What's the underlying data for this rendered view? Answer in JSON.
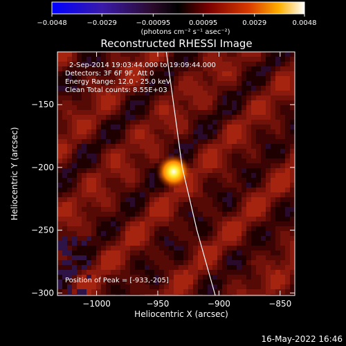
{
  "chart_data": {
    "type": "heatmap",
    "title": "Reconstructed RHESSI Image",
    "xlabel": "Heliocentric X (arcsec)",
    "ylabel": "Heliocentric Y (arcsec)",
    "xlim": [
      -1032,
      -838
    ],
    "ylim": [
      -302,
      -108
    ],
    "x_ticks": [
      {
        "value": -1000,
        "label": "−1000"
      },
      {
        "value": -950,
        "label": "−950"
      },
      {
        "value": -900,
        "label": "−900"
      },
      {
        "value": -850,
        "label": "−850"
      }
    ],
    "y_ticks": [
      {
        "value": -150,
        "label": "−150"
      },
      {
        "value": -200,
        "label": "−200"
      },
      {
        "value": -250,
        "label": "−250"
      },
      {
        "value": -300,
        "label": "−300"
      }
    ],
    "colorbar": {
      "range": [
        -0.0048,
        0.0048
      ],
      "ticks": [
        {
          "value": -0.0048,
          "label": "−0.0048"
        },
        {
          "value": -0.0029,
          "label": "−0.0029"
        },
        {
          "value": -0.00095,
          "label": "−0.00095"
        },
        {
          "value": 0.00095,
          "label": "0.00095"
        },
        {
          "value": 0.0029,
          "label": "0.0029"
        },
        {
          "value": 0.0048,
          "label": "0.0048"
        }
      ],
      "unit_label": "(photons cm⁻² s⁻¹ asec⁻²)",
      "colors": [
        "#0000ff",
        "#3a1aa8",
        "#2a0a2a",
        "#000000",
        "#7a0000",
        "#d83a00",
        "#ffb000",
        "#ffffff"
      ]
    },
    "annotations": [
      "2-Sep-2014 19:03:44.000 to 19:09:44.000",
      "Detectors: 3F 6F 9F, Att 0",
      "Energy Range: 12.0 - 25.0 keV",
      "Clean     Total counts: 8.55E+03"
    ],
    "peak": {
      "x": -933,
      "y": -205,
      "label": "Position of Peak = [-933,-205]"
    },
    "limb": [
      [
        -943,
        -108
      ],
      [
        -937,
        -150
      ],
      [
        -930,
        -200
      ],
      [
        -918,
        -250
      ],
      [
        -903,
        -302
      ]
    ]
  },
  "footer": {
    "timestamp": "16-May-2022 16:46"
  }
}
